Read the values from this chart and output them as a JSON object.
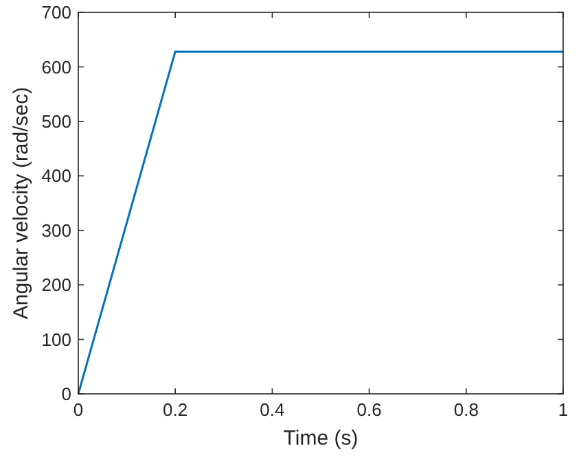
{
  "chart_data": {
    "type": "line",
    "xlabel": "Time (s)",
    "ylabel": "Angular velocity (rad/sec)",
    "x": [
      0,
      0.2,
      1
    ],
    "series": [
      {
        "color": "#0072bd",
        "values": [
          0,
          628,
          628
        ]
      }
    ],
    "xlim": [
      0,
      1
    ],
    "xticks": [
      0,
      0.2,
      0.4,
      0.6,
      0.8,
      1
    ],
    "ylim": [
      0,
      700
    ],
    "yticks": [
      0,
      100,
      200,
      300,
      400,
      500,
      600,
      700
    ],
    "grid": false,
    "line_style": "solid",
    "marker": "none"
  }
}
